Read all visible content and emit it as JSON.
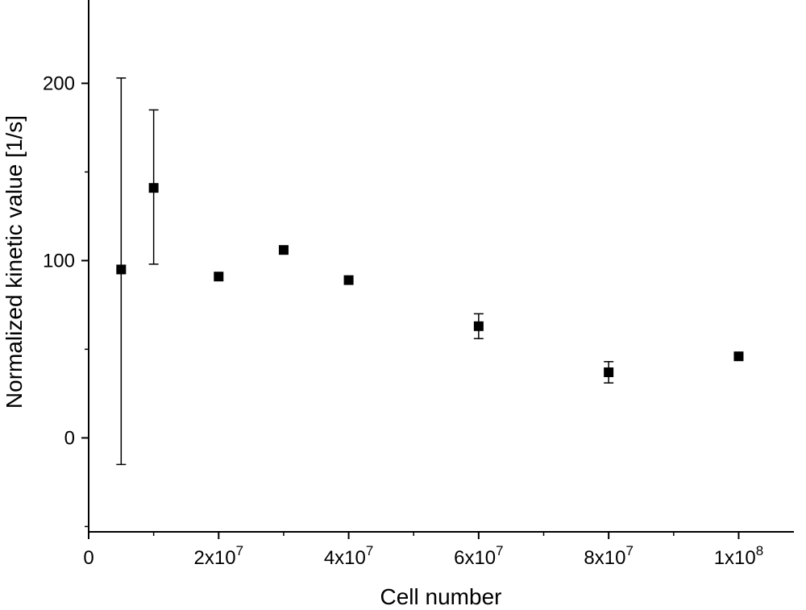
{
  "chart_data": {
    "type": "scatter",
    "title": "",
    "xlabel": "Cell number",
    "ylabel": "Normalized kinetic value [1/s]",
    "xlim": [
      0,
      108500000
    ],
    "ylim": [
      -53,
      247
    ],
    "grid": false,
    "legend": false,
    "colors": {
      "background": "#ffffff",
      "axis": "#000000",
      "marker": "#000000"
    },
    "marker": {
      "shape": "square",
      "size": 12,
      "color": "#000000"
    },
    "x_ticks": [
      {
        "value": 0,
        "base": "0",
        "exp": ""
      },
      {
        "value": 20000000,
        "base": "2x10",
        "exp": "7"
      },
      {
        "value": 40000000,
        "base": "4x10",
        "exp": "7"
      },
      {
        "value": 60000000,
        "base": "6x10",
        "exp": "7"
      },
      {
        "value": 80000000,
        "base": "8x10",
        "exp": "7"
      },
      {
        "value": 100000000,
        "base": "1x10",
        "exp": "8"
      }
    ],
    "x_minor_ticks": [
      10000000,
      30000000,
      50000000,
      70000000,
      90000000
    ],
    "y_ticks": [
      {
        "value": 0,
        "label": "0"
      },
      {
        "value": 100,
        "label": "100"
      },
      {
        "value": 200,
        "label": "200"
      }
    ],
    "y_minor_ticks": [
      -50,
      50,
      150
    ],
    "points": [
      {
        "x": 5000000,
        "y": 95,
        "yerr_plus": 108,
        "yerr_minus": 110
      },
      {
        "x": 10000000,
        "y": 141,
        "yerr_plus": 44,
        "yerr_minus": 43
      },
      {
        "x": 20000000,
        "y": 91,
        "yerr_plus": 0,
        "yerr_minus": 0
      },
      {
        "x": 30000000,
        "y": 106,
        "yerr_plus": 0,
        "yerr_minus": 0
      },
      {
        "x": 40000000,
        "y": 89,
        "yerr_plus": 0,
        "yerr_minus": 0
      },
      {
        "x": 60000000,
        "y": 63,
        "yerr_plus": 7,
        "yerr_minus": 7
      },
      {
        "x": 80000000,
        "y": 37,
        "yerr_plus": 6,
        "yerr_minus": 6
      },
      {
        "x": 100000000,
        "y": 46,
        "yerr_plus": 0,
        "yerr_minus": 0
      }
    ]
  }
}
